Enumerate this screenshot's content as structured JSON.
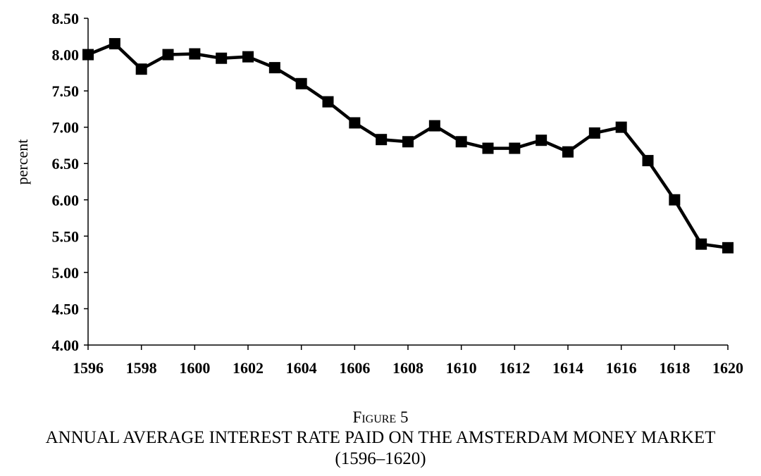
{
  "chart_data": {
    "type": "line",
    "x": [
      1596,
      1597,
      1598,
      1599,
      1600,
      1601,
      1602,
      1603,
      1604,
      1605,
      1606,
      1607,
      1608,
      1609,
      1610,
      1611,
      1612,
      1613,
      1614,
      1615,
      1616,
      1617,
      1618,
      1619,
      1620
    ],
    "series": [
      {
        "values": [
          8.0,
          8.15,
          7.8,
          8.0,
          8.01,
          7.95,
          7.97,
          7.82,
          7.6,
          7.35,
          7.06,
          6.83,
          6.8,
          7.02,
          6.8,
          6.71,
          6.71,
          6.82,
          6.66,
          6.92,
          7.0,
          6.54,
          6.0,
          5.39,
          5.34
        ]
      }
    ],
    "xlabel": "",
    "ylabel": "percent",
    "xlim": [
      1596,
      1620
    ],
    "ylim": [
      4.0,
      8.5
    ],
    "yticks": [
      "4.00",
      "4.50",
      "5.00",
      "5.50",
      "6.00",
      "6.50",
      "7.00",
      "7.50",
      "8.00",
      "8.50"
    ],
    "xticks": [
      "1596",
      "1598",
      "1600",
      "1602",
      "1604",
      "1606",
      "1608",
      "1610",
      "1612",
      "1614",
      "1616",
      "1618",
      "1620"
    ],
    "grid": false,
    "legend": "none",
    "color": "#000000"
  },
  "caption": {
    "label": "Figure 5",
    "title": "ANNUAL AVERAGE INTEREST RATE PAID ON THE AMSTERDAM MONEY MARKET",
    "subtitle": "(1596–1620)"
  }
}
